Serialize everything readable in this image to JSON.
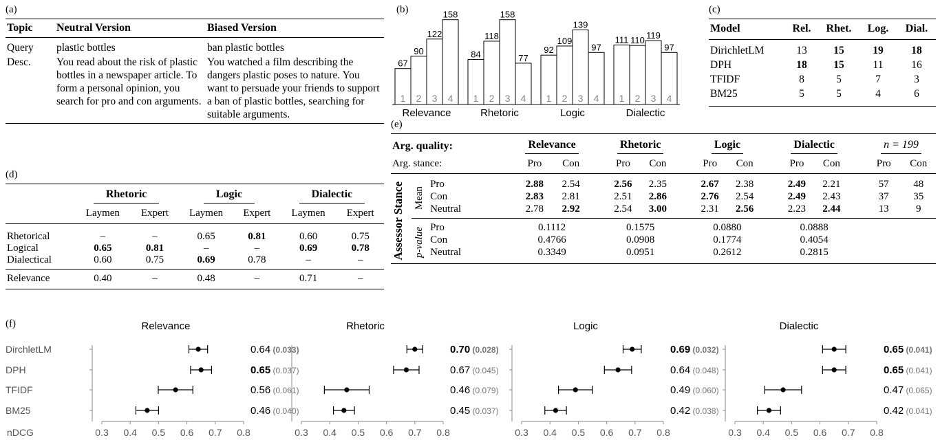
{
  "panel_a": {
    "label": "(a)",
    "headers": [
      "Topic",
      "Neutral Version",
      "Biased Version"
    ],
    "rows": [
      {
        "topic": "Query",
        "neutral": "plastic bottles",
        "biased": "ban plastic bottles"
      },
      {
        "topic": "Desc.",
        "neutral": "You read about the risk of plastic bottles in a newspaper article. To form a personal opinion, you search for pro and con arguments.",
        "biased": "You watched a film describing the dangers plastic poses to nature. You want to persuade your friends to support a ban of plastic bottles, searching for suitable arguments."
      }
    ]
  },
  "panel_b": {
    "label": "(b)",
    "chart_data": {
      "type": "bar",
      "groups": [
        "Relevance",
        "Rhetoric",
        "Logic",
        "Dialectic"
      ],
      "categories": [
        "1",
        "2",
        "3",
        "4"
      ],
      "series": [
        {
          "name": "Relevance",
          "values": [
            67,
            90,
            122,
            158
          ]
        },
        {
          "name": "Rhetoric",
          "values": [
            84,
            118,
            158,
            77
          ]
        },
        {
          "name": "Logic",
          "values": [
            92,
            109,
            139,
            97
          ]
        },
        {
          "name": "Dialectic",
          "values": [
            111,
            110,
            119,
            97
          ]
        }
      ],
      "ylim": [
        0,
        170
      ]
    }
  },
  "panel_c": {
    "label": "(c)",
    "headers": [
      "Model",
      "Rel.",
      "Rhet.",
      "Log.",
      "Dial."
    ],
    "rows": [
      {
        "cells": [
          "DirichletLM",
          "13",
          "15",
          "19",
          "18"
        ],
        "bold": [
          false,
          false,
          true,
          true,
          true
        ]
      },
      {
        "cells": [
          "DPH",
          "18",
          "15",
          "11",
          "16"
        ],
        "bold": [
          false,
          true,
          true,
          false,
          false
        ]
      },
      {
        "cells": [
          "TFIDF",
          "8",
          "5",
          "7",
          "3"
        ],
        "bold": [
          false,
          false,
          false,
          false,
          false
        ]
      },
      {
        "cells": [
          "BM25",
          "5",
          "5",
          "4",
          "6"
        ],
        "bold": [
          false,
          false,
          false,
          false,
          false
        ]
      }
    ]
  },
  "panel_d": {
    "label": "(d)",
    "groups": [
      "Rhetoric",
      "Logic",
      "Dialectic"
    ],
    "subheaders": [
      "Laymen",
      "Expert",
      "Laymen",
      "Expert",
      "Laymen",
      "Expert"
    ],
    "rows": [
      {
        "cells": [
          "Rhetorical",
          "–",
          "–",
          "0.65",
          "0.81",
          "0.60",
          "0.75"
        ],
        "bold": [
          false,
          false,
          false,
          false,
          true,
          false,
          false
        ]
      },
      {
        "cells": [
          "Logical",
          "0.65",
          "0.81",
          "–",
          "–",
          "0.69",
          "0.78"
        ],
        "bold": [
          false,
          true,
          true,
          false,
          false,
          true,
          true
        ]
      },
      {
        "cells": [
          "Dialectical",
          "0.60",
          "0.75",
          "0.69",
          "0.78",
          "–",
          "–"
        ],
        "bold": [
          false,
          false,
          false,
          true,
          false,
          false,
          false
        ]
      },
      {
        "cells": [
          "Relevance",
          "0.40",
          "–",
          "0.48",
          "–",
          "0.71",
          "–"
        ],
        "bold": [
          false,
          false,
          false,
          false,
          false,
          false,
          false
        ]
      }
    ]
  },
  "panel_e": {
    "label": "(e)",
    "h1_label": "Arg. quality:",
    "groups": [
      "Relevance",
      "Rhetoric",
      "Logic",
      "Dialectic"
    ],
    "n_label": "n = 199",
    "h2_label": "Arg. stance:",
    "stances": [
      "Pro",
      "Con"
    ],
    "side_label": "Assessor Stance",
    "mean_label": "Mean",
    "pvalue_label": "p-value",
    "mean_rows": [
      {
        "stance": "Pro",
        "vals": [
          "2.88",
          "2.54",
          "2.56",
          "2.35",
          "2.67",
          "2.38",
          "2.49",
          "2.21"
        ],
        "bold": [
          true,
          false,
          true,
          false,
          true,
          false,
          true,
          false
        ],
        "n": [
          "57",
          "48"
        ]
      },
      {
        "stance": "Con",
        "vals": [
          "2.83",
          "2.81",
          "2.51",
          "2.86",
          "2.76",
          "2.54",
          "2.49",
          "2.43"
        ],
        "bold": [
          true,
          false,
          false,
          true,
          true,
          false,
          true,
          false
        ],
        "n": [
          "37",
          "35"
        ]
      },
      {
        "stance": "Neutral",
        "vals": [
          "2.78",
          "2.92",
          "2.54",
          "3.00",
          "2.31",
          "2.56",
          "2.23",
          "2.44"
        ],
        "bold": [
          false,
          true,
          false,
          true,
          false,
          true,
          false,
          true
        ],
        "n": [
          "13",
          "9"
        ]
      }
    ],
    "p_rows": [
      {
        "stance": "Pro",
        "vals": [
          "0.1112",
          "0.1575",
          "0.0880",
          "0.0888"
        ]
      },
      {
        "stance": "Con",
        "vals": [
          "0.4766",
          "0.0908",
          "0.1774",
          "0.4054"
        ]
      },
      {
        "stance": "Neutral",
        "vals": [
          "0.3349",
          "0.0951",
          "0.2612",
          "0.2815"
        ]
      }
    ]
  },
  "panel_f": {
    "label": "(f)",
    "chart_data": {
      "type": "scatter",
      "xlabel": "nDCG",
      "xlim": [
        0.3,
        0.8
      ],
      "xticks": [
        "0.3",
        "0.4",
        "0.5",
        "0.6",
        "0.7",
        "0.8"
      ],
      "models": [
        "DirchletLM",
        "DPH",
        "TFIDF",
        "BM25"
      ],
      "panels": [
        {
          "title": "Relevance",
          "points": [
            {
              "mean": 0.64,
              "sd": 0.033,
              "mean_label": "0.64",
              "sd_label": "(0.033)",
              "bold": false,
              "sd_bold": true
            },
            {
              "mean": 0.65,
              "sd": 0.037,
              "mean_label": "0.65",
              "sd_label": "(0.037)",
              "bold": true,
              "sd_bold": false
            },
            {
              "mean": 0.56,
              "sd": 0.061,
              "mean_label": "0.56",
              "sd_label": "(0.061)",
              "bold": false,
              "sd_bold": false
            },
            {
              "mean": 0.46,
              "sd": 0.04,
              "mean_label": "0.46",
              "sd_label": "(0.040)",
              "bold": false,
              "sd_bold": false
            }
          ]
        },
        {
          "title": "Rhetoric",
          "points": [
            {
              "mean": 0.7,
              "sd": 0.028,
              "mean_label": "0.70",
              "sd_label": "(0.028)",
              "bold": true,
              "sd_bold": true
            },
            {
              "mean": 0.67,
              "sd": 0.045,
              "mean_label": "0.67",
              "sd_label": "(0.045)",
              "bold": false,
              "sd_bold": false
            },
            {
              "mean": 0.46,
              "sd": 0.079,
              "mean_label": "0.46",
              "sd_label": "(0.079)",
              "bold": false,
              "sd_bold": false
            },
            {
              "mean": 0.45,
              "sd": 0.037,
              "mean_label": "0.45",
              "sd_label": "(0.037)",
              "bold": false,
              "sd_bold": false
            }
          ]
        },
        {
          "title": "Logic",
          "points": [
            {
              "mean": 0.69,
              "sd": 0.032,
              "mean_label": "0.69",
              "sd_label": "(0.032)",
              "bold": true,
              "sd_bold": true
            },
            {
              "mean": 0.64,
              "sd": 0.048,
              "mean_label": "0.64",
              "sd_label": "(0.048)",
              "bold": false,
              "sd_bold": false
            },
            {
              "mean": 0.49,
              "sd": 0.06,
              "mean_label": "0.49",
              "sd_label": "(0.060)",
              "bold": false,
              "sd_bold": false
            },
            {
              "mean": 0.42,
              "sd": 0.038,
              "mean_label": "0.42",
              "sd_label": "(0.038)",
              "bold": false,
              "sd_bold": false
            }
          ]
        },
        {
          "title": "Dialectic",
          "points": [
            {
              "mean": 0.65,
              "sd": 0.041,
              "mean_label": "0.65",
              "sd_label": "(0.041)",
              "bold": true,
              "sd_bold": true
            },
            {
              "mean": 0.65,
              "sd": 0.041,
              "mean_label": "0.65",
              "sd_label": "(0.041)",
              "bold": true,
              "sd_bold": false
            },
            {
              "mean": 0.47,
              "sd": 0.065,
              "mean_label": "0.47",
              "sd_label": "(0.065)",
              "bold": false,
              "sd_bold": false
            },
            {
              "mean": 0.42,
              "sd": 0.041,
              "mean_label": "0.42",
              "sd_label": "(0.041)",
              "bold": false,
              "sd_bold": false
            }
          ]
        }
      ]
    }
  }
}
